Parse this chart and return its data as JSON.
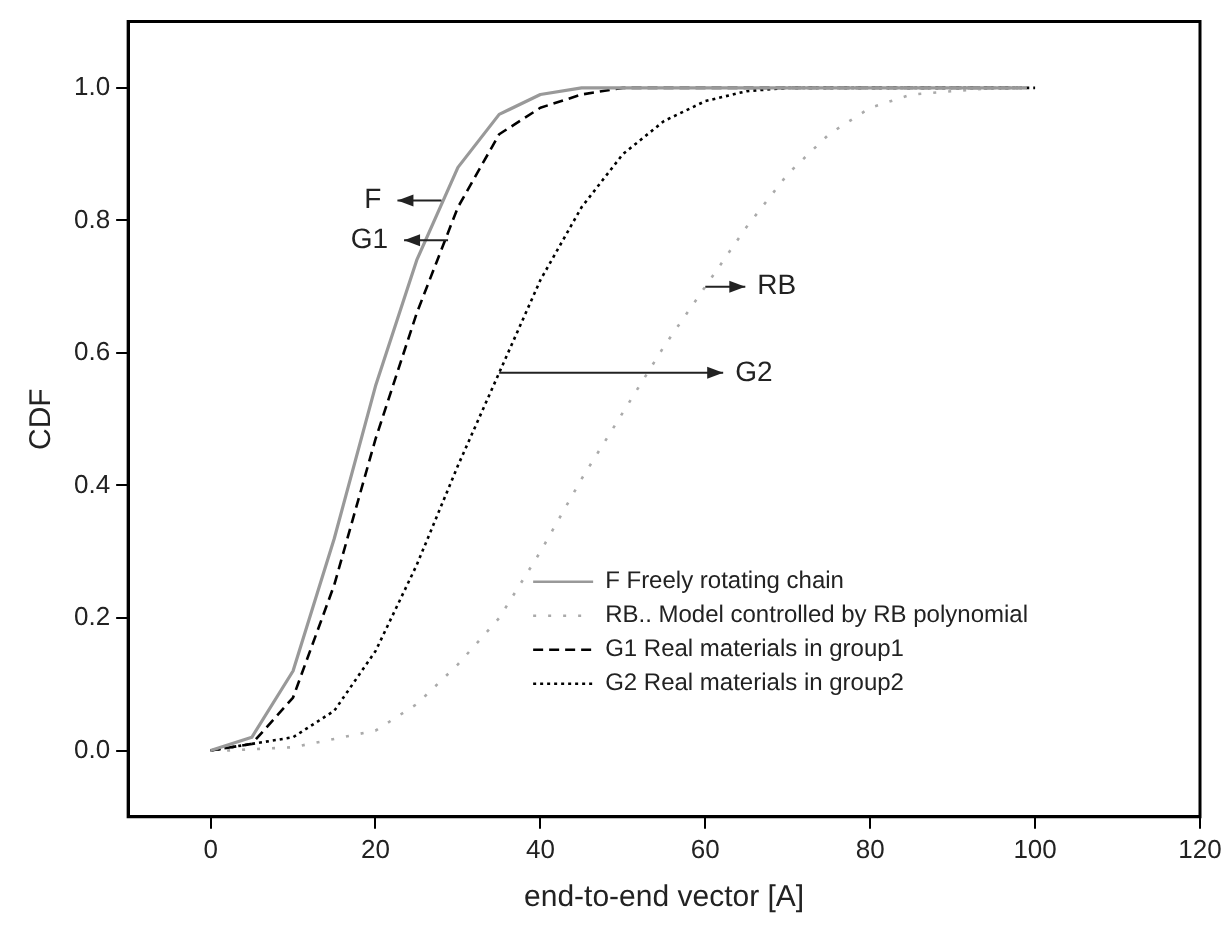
{
  "chart_data": {
    "type": "line",
    "xlabel": "end-to-end vector [A]",
    "ylabel": "CDF",
    "xlim": [
      -10,
      120
    ],
    "xticks": [
      0,
      20,
      40,
      60,
      80,
      100,
      120
    ],
    "ylim": [
      -0.1,
      1.1
    ],
    "yticks": [
      {
        "value": 0,
        "label": "0.0"
      },
      {
        "value": 0.2,
        "label": "0.2"
      },
      {
        "value": 0.4,
        "label": "0.4"
      },
      {
        "value": 0.6,
        "label": "0.6"
      },
      {
        "value": 0.8,
        "label": "0.8"
      },
      {
        "value": 1,
        "label": "1.0"
      }
    ],
    "grid": false,
    "legend": "bottom right",
    "marker": "none",
    "series": [
      {
        "name": "F Freely rotating chain",
        "color": "#999999",
        "line_style": "solid",
        "x": [
          0,
          5,
          10,
          15,
          20,
          25,
          30,
          35,
          40,
          45,
          50,
          99
        ],
        "values": [
          0,
          0.02,
          0.12,
          0.32,
          0.55,
          0.74,
          0.88,
          0.96,
          0.99,
          1,
          1,
          1
        ]
      },
      {
        "name": "RB.. Model controlled by RB polynomial",
        "color": "#aaaaaa",
        "line_style": "dotted",
        "x": [
          2,
          10,
          20,
          25,
          30,
          35,
          40,
          45,
          50,
          55,
          60,
          65,
          70,
          75,
          80,
          85,
          90,
          95,
          100
        ],
        "values": [
          0,
          0.005,
          0.03,
          0.07,
          0.13,
          0.2,
          0.3,
          0.41,
          0.51,
          0.61,
          0.7,
          0.79,
          0.87,
          0.93,
          0.97,
          0.99,
          0.995,
          1,
          1
        ]
      },
      {
        "name": "G1 Real materials in group1",
        "color": "#000000",
        "line_style": "dashed",
        "x": [
          0,
          5,
          10,
          15,
          20,
          25,
          30,
          35,
          40,
          45,
          50,
          98
        ],
        "values": [
          0,
          0.01,
          0.08,
          0.25,
          0.47,
          0.66,
          0.82,
          0.93,
          0.97,
          0.99,
          1,
          1
        ]
      },
      {
        "name": "G2 Real materials in group2",
        "color": "#000000",
        "line_style": "dotted",
        "x": [
          0,
          10,
          15,
          20,
          25,
          30,
          35,
          40,
          45,
          50,
          55,
          60,
          65,
          70,
          100
        ],
        "values": [
          0,
          0.02,
          0.06,
          0.15,
          0.28,
          0.43,
          0.57,
          0.71,
          0.82,
          0.9,
          0.95,
          0.98,
          0.995,
          1,
          1
        ]
      }
    ],
    "annotations": [
      {
        "text": "F",
        "x": 28,
        "y": 0.83
      },
      {
        "text": "G1",
        "x": 28.8,
        "y": 0.77
      },
      {
        "text": "RB",
        "x": 60,
        "y": 0.7
      },
      {
        "text": "G2",
        "x": 35,
        "y": 0.57
      }
    ]
  }
}
